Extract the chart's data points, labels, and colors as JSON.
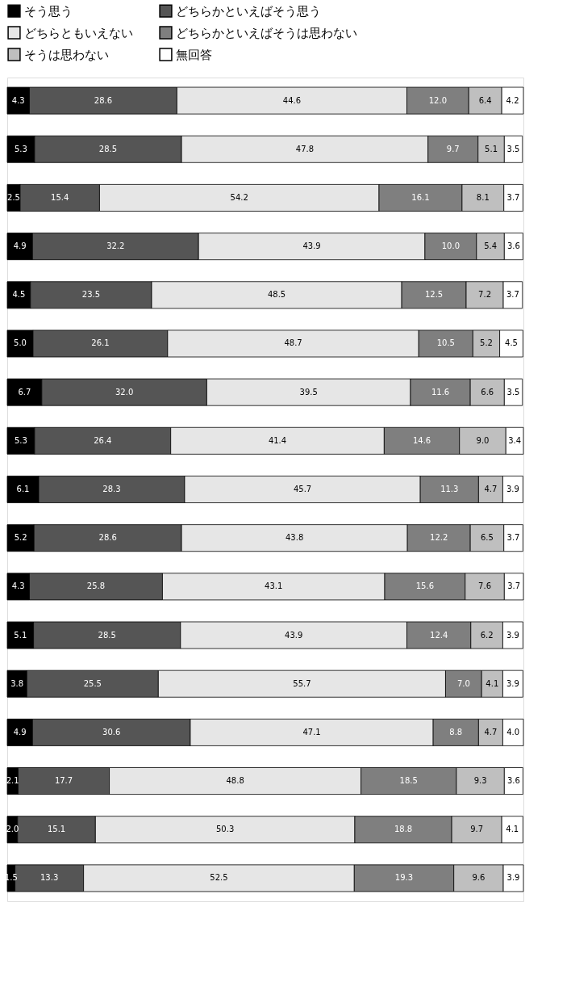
{
  "chart_data": {
    "type": "bar",
    "orientation": "horizontal",
    "stacked": true,
    "legend": "top",
    "tick_labels": false,
    "categories": [
      null,
      null,
      null,
      null,
      null,
      null,
      null,
      null,
      null,
      null,
      null,
      null,
      null,
      null,
      null,
      null,
      null
    ],
    "series": [
      {
        "name": "そう思う",
        "color": "#000000",
        "values": [
          4.3,
          5.3,
          2.5,
          4.9,
          4.5,
          5.0,
          6.7,
          5.3,
          6.1,
          5.2,
          4.3,
          5.1,
          3.8,
          4.9,
          2.1,
          2.0,
          1.5
        ],
        "value_labels": [
          "4.3",
          "5.3",
          "2.5",
          "4.9",
          "4.5",
          "5.0",
          "6.7",
          "5.3",
          "6.1",
          "5.2",
          "4.3",
          "5.1",
          "3.8",
          "4.9",
          "2.1",
          "2.0",
          "1.5"
        ]
      },
      {
        "name": "どちらかといえばそう思う",
        "color": "#555555",
        "values": [
          28.6,
          28.5,
          15.4,
          32.2,
          23.5,
          26.1,
          32.0,
          26.4,
          28.3,
          28.6,
          25.8,
          28.5,
          25.5,
          30.6,
          17.7,
          15.1,
          13.3
        ],
        "value_labels": [
          "28.6",
          "28.5",
          "15.4",
          "32.2",
          "23.5",
          "26.1",
          "32.0",
          "26.4",
          "28.3",
          "28.6",
          "25.8",
          "28.5",
          "25.5",
          "30.6",
          "17.7",
          "15.1",
          "13.3"
        ]
      },
      {
        "name": "どちらともいえない",
        "color": "#e6e6e6",
        "values": [
          44.6,
          47.8,
          54.2,
          43.9,
          48.5,
          48.7,
          39.5,
          41.4,
          45.7,
          43.8,
          43.1,
          43.9,
          55.7,
          47.1,
          48.8,
          50.3,
          52.5
        ],
        "value_labels": [
          "44.6",
          "47.8",
          "54.2",
          "43.9",
          "48.5",
          "48.7",
          "39.5",
          "41.4",
          "45.7",
          "43.8",
          "43.1",
          "43.9",
          "55.7",
          "47.1",
          "48.8",
          "50.3",
          "52.5"
        ]
      },
      {
        "name": "どちらかといえばそうは思わない",
        "color": "#7f7f7f",
        "values": [
          12.0,
          9.7,
          16.1,
          10.0,
          12.5,
          10.5,
          11.6,
          14.6,
          11.3,
          12.2,
          15.6,
          12.4,
          7.0,
          8.8,
          18.5,
          18.8,
          19.3
        ],
        "value_labels": [
          "12.0",
          "9.7",
          "16.1",
          "10.0",
          "12.5",
          "10.5",
          "11.6",
          "14.6",
          "11.3",
          "12.2",
          "15.6",
          "12.4",
          "7.0",
          "8.8",
          "18.5",
          "18.8",
          "19.3"
        ]
      },
      {
        "name": "そうは思わない",
        "color": "#bfbfbf",
        "values": [
          6.4,
          5.1,
          8.1,
          5.4,
          7.2,
          5.2,
          6.6,
          9.0,
          4.7,
          6.5,
          7.6,
          6.2,
          4.1,
          4.7,
          9.3,
          9.7,
          9.6
        ],
        "value_labels": [
          "6.4",
          "5.1",
          "8.1",
          "5.4",
          "7.2",
          "5.2",
          "6.6",
          "9.0",
          "4.7",
          "6.5",
          "7.6",
          "6.2",
          "4.1",
          "4.7",
          "9.3",
          "9.7",
          "9.6"
        ]
      },
      {
        "name": "無回答",
        "color": "#ffffff",
        "values": [
          4.2,
          3.5,
          3.7,
          3.6,
          3.7,
          4.5,
          3.5,
          3.4,
          3.9,
          3.7,
          3.7,
          3.9,
          3.9,
          4.0,
          3.6,
          4.1,
          3.9
        ],
        "value_labels": [
          "4.2",
          "3.5",
          "3.7",
          "3.6",
          "3.7",
          "4.5",
          "3.5",
          "3.4",
          "3.9",
          "3.7",
          "3.7",
          "3.9",
          "3.9",
          "4.0",
          "3.6",
          "4.1",
          "3.9"
        ]
      }
    ]
  }
}
